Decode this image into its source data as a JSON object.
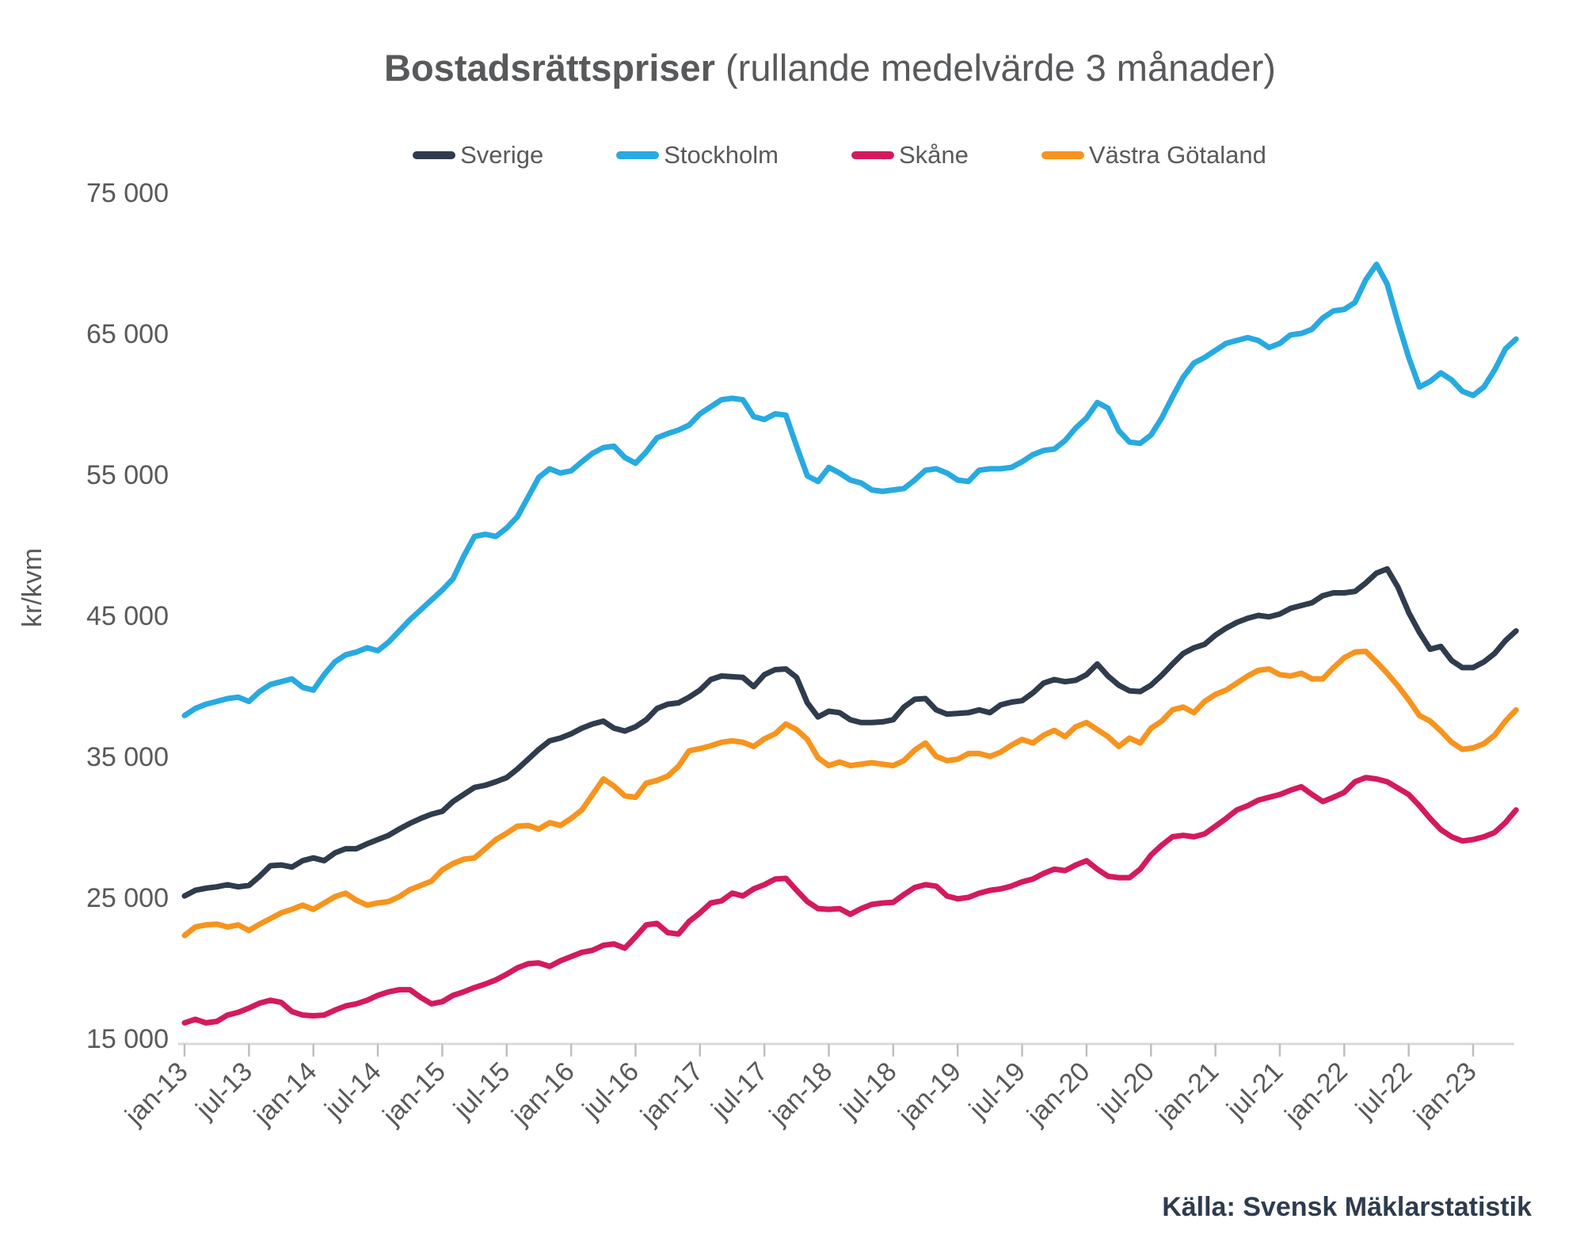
{
  "title": {
    "bold": "Bostadsrättspriser",
    "regular": " (rullande medelvärde 3 månader)"
  },
  "source_note": "Källa: Svensk Mäklarstatistik",
  "chart_data": {
    "type": "line",
    "title": "Bostadsrättspriser (rullande medelvärde 3 månader)",
    "xlabel": "",
    "ylabel": "kr/kvm",
    "ylim": [
      15000,
      75000
    ],
    "grid": false,
    "legend_position": "top",
    "x_unit": "month",
    "x_range_labels": [
      "jan-13",
      "maj-23"
    ],
    "y_ticks": [
      {
        "value": 15000,
        "label": "15 000"
      },
      {
        "value": 25000,
        "label": "25 000"
      },
      {
        "value": 35000,
        "label": "35 000"
      },
      {
        "value": 45000,
        "label": "45 000"
      },
      {
        "value": 55000,
        "label": "55 000"
      },
      {
        "value": 65000,
        "label": "65 000"
      },
      {
        "value": 75000,
        "label": "75 000"
      }
    ],
    "x_ticks": [
      {
        "month": 0,
        "label": "jan-13"
      },
      {
        "month": 6,
        "label": "jul-13"
      },
      {
        "month": 12,
        "label": "jan-14"
      },
      {
        "month": 18,
        "label": "jul-14"
      },
      {
        "month": 24,
        "label": "jan-15"
      },
      {
        "month": 30,
        "label": "jul-15"
      },
      {
        "month": 36,
        "label": "jan-16"
      },
      {
        "month": 42,
        "label": "jul-16"
      },
      {
        "month": 48,
        "label": "jan-17"
      },
      {
        "month": 54,
        "label": "jul-17"
      },
      {
        "month": 60,
        "label": "jan-18"
      },
      {
        "month": 66,
        "label": "jul-18"
      },
      {
        "month": 72,
        "label": "jan-19"
      },
      {
        "month": 78,
        "label": "jul-19"
      },
      {
        "month": 84,
        "label": "jan-20"
      },
      {
        "month": 90,
        "label": "jul-20"
      },
      {
        "month": 96,
        "label": "jan-21"
      },
      {
        "month": 102,
        "label": "jul-21"
      },
      {
        "month": 108,
        "label": "jan-22"
      },
      {
        "month": 114,
        "label": "jul-22"
      },
      {
        "month": 120,
        "label": "jan-23"
      }
    ],
    "series": [
      {
        "name": "Sverige",
        "color": "#2e3c4d",
        "values": [
          25100,
          25500,
          25650,
          25750,
          25900,
          25750,
          25850,
          26500,
          27250,
          27300,
          27150,
          27600,
          27800,
          27600,
          28150,
          28450,
          28450,
          28800,
          29100,
          29400,
          29850,
          30250,
          30600,
          30900,
          31100,
          31800,
          32300,
          32800,
          32950,
          33200,
          33500,
          34100,
          34800,
          35500,
          36100,
          36300,
          36600,
          37000,
          37300,
          37500,
          37000,
          36800,
          37100,
          37600,
          38400,
          38700,
          38800,
          39200,
          39700,
          40450,
          40700,
          40650,
          40600,
          39950,
          40800,
          41150,
          41200,
          40600,
          38800,
          37800,
          38200,
          38100,
          37600,
          37400,
          37400,
          37450,
          37600,
          38500,
          39050,
          39100,
          38300,
          38000,
          38050,
          38100,
          38300,
          38100,
          38650,
          38850,
          38950,
          39500,
          40200,
          40450,
          40300,
          40400,
          40800,
          41550,
          40700,
          40050,
          39650,
          39600,
          40050,
          40750,
          41550,
          42300,
          42700,
          42950,
          43600,
          44100,
          44500,
          44800,
          45000,
          44900,
          45100,
          45500,
          45700,
          45900,
          46400,
          46600,
          46600,
          46700,
          47300,
          48000,
          48300,
          47000,
          45200,
          43800,
          42600,
          42800,
          41800,
          41300,
          41300,
          41700,
          42300,
          43200,
          43900
        ]
      },
      {
        "name": "Stockholm",
        "color": "#27aae1",
        "values": [
          37900,
          38400,
          38700,
          38900,
          39100,
          39200,
          38900,
          39600,
          40100,
          40300,
          40500,
          39900,
          39700,
          40800,
          41700,
          42200,
          42400,
          42700,
          42500,
          43100,
          43900,
          44700,
          45400,
          46100,
          46800,
          47600,
          49200,
          50600,
          50750,
          50600,
          51200,
          52000,
          53400,
          54800,
          55400,
          55100,
          55250,
          55900,
          56500,
          56900,
          57000,
          56200,
          55800,
          56600,
          57600,
          57900,
          58150,
          58500,
          59300,
          59800,
          60300,
          60400,
          60300,
          59100,
          58900,
          59300,
          59200,
          57000,
          54900,
          54500,
          55500,
          55100,
          54600,
          54400,
          53900,
          53800,
          53900,
          54000,
          54600,
          55300,
          55400,
          55100,
          54600,
          54500,
          55300,
          55400,
          55400,
          55500,
          55900,
          56400,
          56700,
          56800,
          57400,
          58300,
          59000,
          60100,
          59700,
          58100,
          57300,
          57200,
          57800,
          59000,
          60500,
          61900,
          62900,
          63300,
          63800,
          64300,
          64500,
          64700,
          64500,
          64000,
          64300,
          64900,
          65000,
          65300,
          66100,
          66600,
          66700,
          67200,
          68800,
          69900,
          68500,
          65800,
          63300,
          61200,
          61600,
          62200,
          61700,
          60900,
          60600,
          61200,
          62400,
          63900,
          64600
        ]
      },
      {
        "name": "Skåne",
        "color": "#d41a5f",
        "values": [
          16100,
          16350,
          16100,
          16200,
          16650,
          16850,
          17150,
          17500,
          17700,
          17550,
          16900,
          16650,
          16600,
          16650,
          17000,
          17300,
          17450,
          17700,
          18050,
          18300,
          18450,
          18450,
          17900,
          17450,
          17600,
          18050,
          18300,
          18600,
          18850,
          19150,
          19550,
          20000,
          20300,
          20350,
          20100,
          20500,
          20800,
          21100,
          21250,
          21600,
          21700,
          21400,
          22200,
          23050,
          23150,
          22500,
          22400,
          23300,
          23900,
          24600,
          24750,
          25300,
          25100,
          25600,
          25900,
          26300,
          26350,
          25500,
          24700,
          24200,
          24150,
          24200,
          23800,
          24200,
          24500,
          24600,
          24650,
          25200,
          25700,
          25900,
          25800,
          25100,
          24900,
          25000,
          25300,
          25500,
          25600,
          25800,
          26100,
          26300,
          26700,
          27000,
          26900,
          27300,
          27600,
          27000,
          26500,
          26400,
          26400,
          27000,
          28000,
          28700,
          29300,
          29400,
          29300,
          29500,
          30050,
          30600,
          31200,
          31500,
          31900,
          32100,
          32300,
          32600,
          32850,
          32300,
          31800,
          32100,
          32450,
          33200,
          33500,
          33400,
          33200,
          32750,
          32300,
          31500,
          30600,
          29800,
          29300,
          29000,
          29100,
          29300,
          29600,
          30300,
          31200
        ]
      },
      {
        "name": "Västra Götaland",
        "color": "#f7941e",
        "values": [
          22300,
          22900,
          23050,
          23100,
          22900,
          23050,
          22650,
          23100,
          23500,
          23900,
          24150,
          24450,
          24150,
          24600,
          25050,
          25300,
          24800,
          24450,
          24600,
          24700,
          25050,
          25550,
          25850,
          26150,
          26950,
          27400,
          27700,
          27800,
          28450,
          29100,
          29550,
          30050,
          30100,
          29850,
          30300,
          30100,
          30600,
          31200,
          32300,
          33400,
          32900,
          32200,
          32100,
          33100,
          33300,
          33600,
          34300,
          35400,
          35550,
          35750,
          36000,
          36100,
          36000,
          35700,
          36250,
          36600,
          37300,
          36900,
          36200,
          34900,
          34350,
          34600,
          34350,
          34450,
          34550,
          34450,
          34350,
          34700,
          35450,
          35950,
          35000,
          34700,
          34800,
          35200,
          35200,
          35000,
          35300,
          35800,
          36200,
          35950,
          36500,
          36850,
          36400,
          37100,
          37400,
          36900,
          36400,
          35700,
          36300,
          35950,
          37000,
          37500,
          38300,
          38500,
          38100,
          38900,
          39400,
          39700,
          40200,
          40700,
          41100,
          41200,
          40800,
          40700,
          40900,
          40500,
          40500,
          41300,
          42000,
          42400,
          42450,
          41700,
          40900,
          40000,
          39000,
          37900,
          37500,
          36800,
          36000,
          35500,
          35600,
          35900,
          36500,
          37500,
          38300
        ]
      }
    ]
  }
}
